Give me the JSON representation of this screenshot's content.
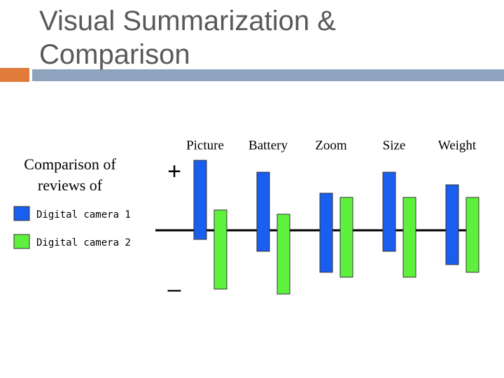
{
  "title": "Visual Summarization & Comparison",
  "description": "Comparison of reviews of",
  "chart_data": {
    "type": "floating-bar",
    "categories": [
      "Picture",
      "Battery",
      "Zoom",
      "Size",
      "Weight"
    ],
    "series": [
      {
        "name": "Digital camera 1",
        "color": "#1a5ef0",
        "values": [
          100,
          83,
          53,
          83,
          65
        ],
        "neg_values": [
          -13,
          -30,
          -60,
          -30,
          -49
        ]
      },
      {
        "name": "Digital camera 2",
        "color": "#5ef03c",
        "values": [
          29,
          23,
          47,
          47,
          47
        ],
        "neg_values": [
          -84,
          -91,
          -67,
          -67,
          -60
        ]
      }
    ],
    "ylim": [
      -120,
      120
    ],
    "yticks": [
      {
        "value": 82,
        "label": "+"
      },
      {
        "value": -86,
        "label": "–"
      }
    ]
  }
}
